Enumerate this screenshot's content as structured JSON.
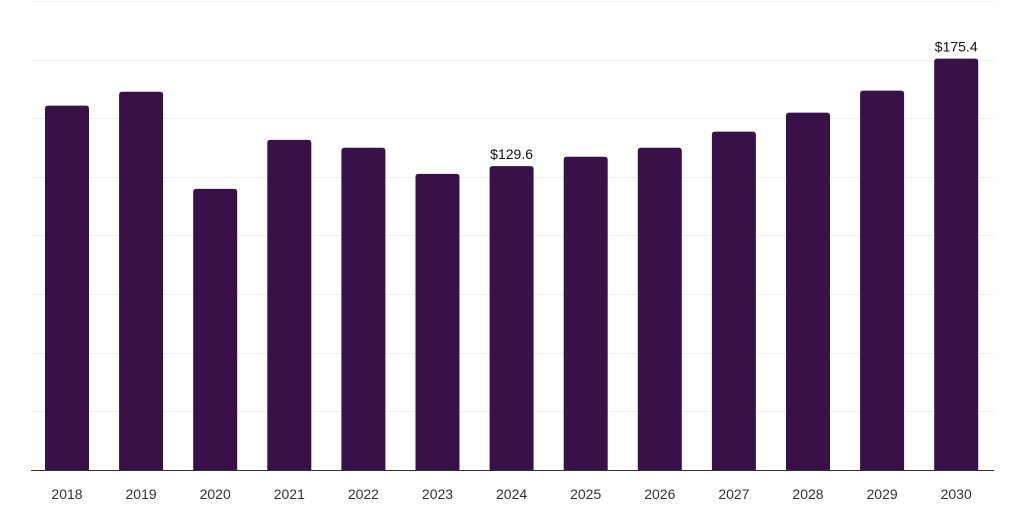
{
  "chart_data": {
    "type": "bar",
    "title": "",
    "xlabel": "",
    "ylabel": "",
    "categories": [
      "2018",
      "2019",
      "2020",
      "2021",
      "2022",
      "2023",
      "2024",
      "2025",
      "2026",
      "2027",
      "2028",
      "2029",
      "2030"
    ],
    "values": [
      155.4,
      161.3,
      119.9,
      140.8,
      137.4,
      126.3,
      129.6,
      133.6,
      137.4,
      144.3,
      152.4,
      161.8,
      175.4
    ],
    "ylim": [
      0,
      200
    ],
    "grid": true,
    "gridline_step": 25,
    "legend": null,
    "data_labels": [
      {
        "category": "2024",
        "text": "$129.6"
      },
      {
        "category": "2030",
        "text": "$175.4"
      }
    ],
    "bar_color": "#371148"
  }
}
